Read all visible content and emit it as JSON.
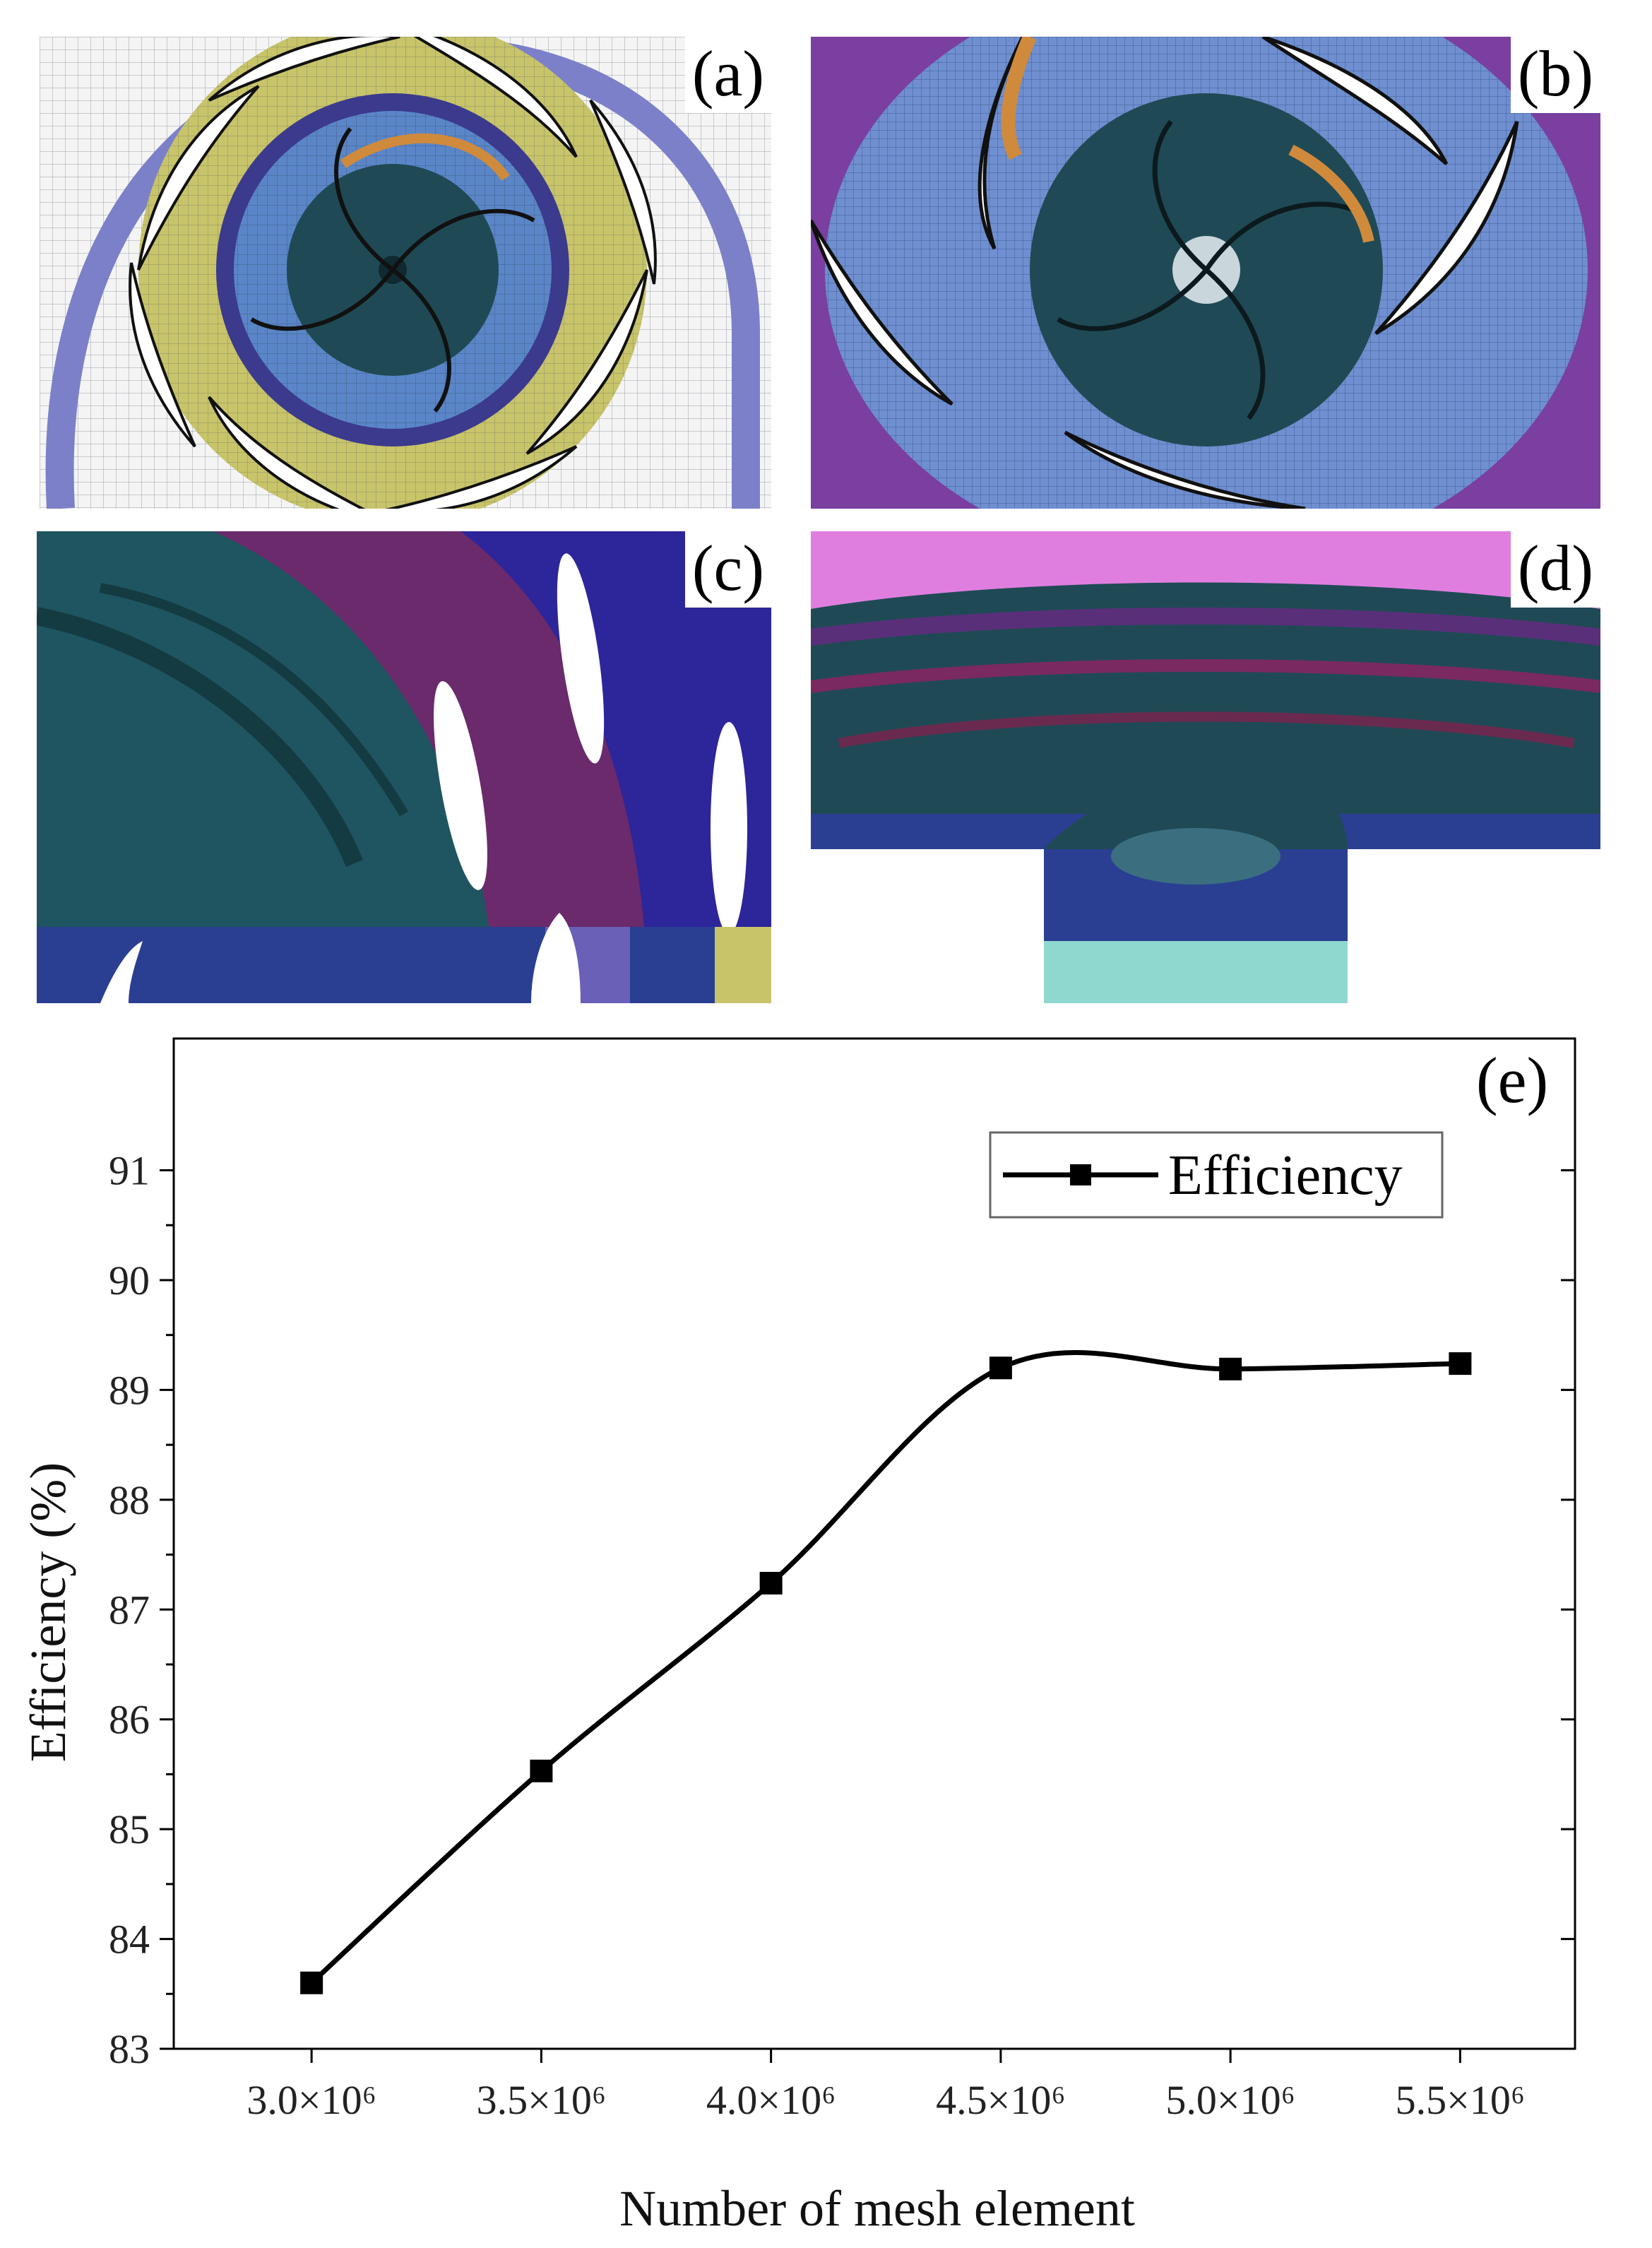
{
  "panels": {
    "a": {
      "label": "(a)"
    },
    "b": {
      "label": "(b)"
    },
    "c": {
      "label": "(c)"
    },
    "d": {
      "label": "(d)"
    },
    "e": {
      "label": "(e)"
    }
  },
  "colors": {
    "mesh_blue": "#5a86c8",
    "mesh_yellow": "#c8c46a",
    "mesh_purple": "#7a3fa0",
    "mesh_teal": "#1f4a55",
    "mesh_orange": "#d08a3c",
    "mesh_navy": "#2b2f8c",
    "mesh_magenta": "#c060c8",
    "line": "#000000"
  },
  "chart_data": {
    "type": "line",
    "title": "",
    "xlabel": "Number of mesh element",
    "ylabel": "Efficiency (%)",
    "x": [
      3000000,
      3500000,
      4000000,
      4500000,
      5000000,
      5500000
    ],
    "x_tick_labels": [
      "3.0×10⁶",
      "3.5×10⁶",
      "4.0×10⁶",
      "4.5×10⁶",
      "5.0×10⁶",
      "5.5×10⁶"
    ],
    "y_ticks": [
      83,
      84,
      85,
      86,
      87,
      88,
      89,
      90,
      91
    ],
    "xlim": [
      2700000,
      5750000
    ],
    "ylim": [
      83,
      92.2
    ],
    "series": [
      {
        "name": "Efficiency",
        "values": [
          83.6,
          85.53,
          87.24,
          89.2,
          89.19,
          89.24
        ]
      }
    ],
    "legend": {
      "entries": [
        "Efficiency"
      ],
      "placement": "top-right"
    },
    "grid": false
  }
}
